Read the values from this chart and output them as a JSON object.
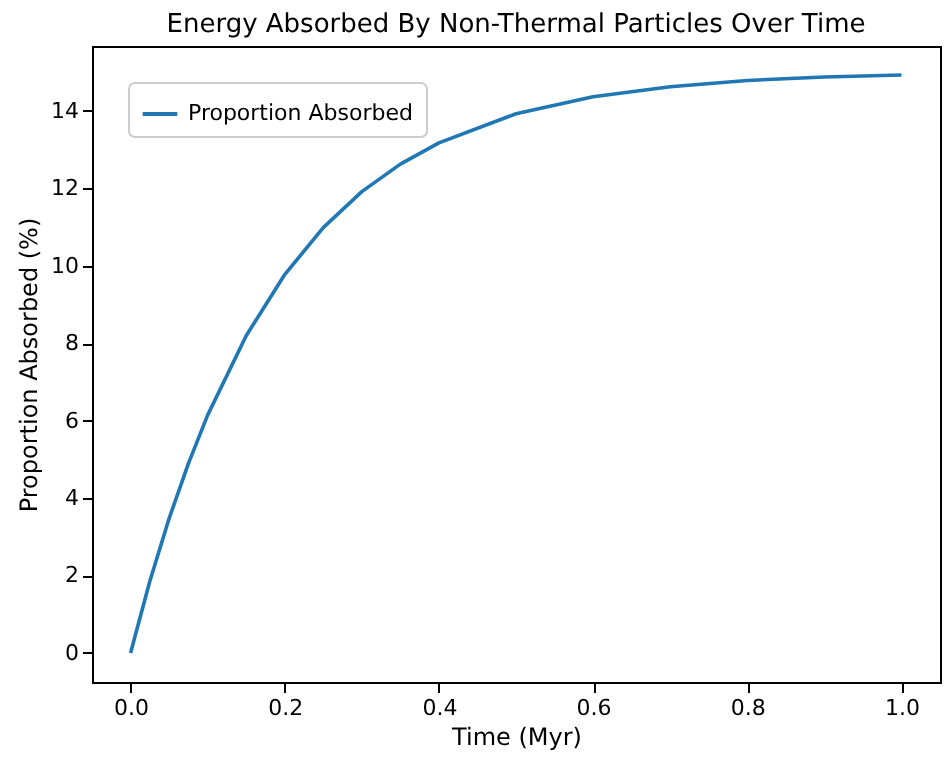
{
  "chart_data": {
    "type": "line",
    "title": "Energy Absorbed By Non-Thermal Particles Over Time",
    "xlabel": "Time (Myr)",
    "ylabel": "Proportion Absorbed (%)",
    "x": [
      0,
      0.025,
      0.05,
      0.075,
      0.1,
      0.15,
      0.2,
      0.25,
      0.3,
      0.35,
      0.4,
      0.5,
      0.6,
      0.7,
      0.8,
      0.9,
      1.0
    ],
    "series": [
      {
        "name": "Proportion Absorbed",
        "color": "#1f77b4",
        "values": [
          0,
          1.85,
          3.47,
          4.89,
          6.14,
          8.19,
          9.77,
          10.98,
          11.91,
          12.62,
          13.17,
          13.92,
          14.36,
          14.62,
          14.78,
          14.87,
          14.92
        ]
      }
    ],
    "xlim": [
      -0.05,
      1.05
    ],
    "ylim": [
      -0.75,
      15.67
    ],
    "xticks": [
      {
        "value": 0,
        "label": "0.0"
      },
      {
        "value": 0.2,
        "label": "0.2"
      },
      {
        "value": 0.4,
        "label": "0.4"
      },
      {
        "value": 0.6,
        "label": "0.6"
      },
      {
        "value": 0.8,
        "label": "0.8"
      },
      {
        "value": 1.0,
        "label": "1.0"
      }
    ],
    "yticks": [
      0,
      2,
      4,
      6,
      8,
      10,
      12,
      14
    ],
    "grid": false,
    "legend": "top left",
    "marker": "none",
    "line_style": "solid"
  }
}
